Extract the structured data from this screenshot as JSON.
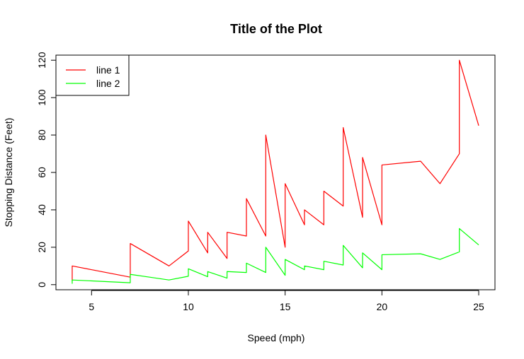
{
  "chart_data": {
    "type": "line",
    "title": "Title of the Plot",
    "xlabel": "Speed (mph)",
    "ylabel": "Stopping Distance (Feet)",
    "xlim": [
      3.16,
      25.84
    ],
    "ylim": [
      -2.72,
      122.72
    ],
    "xticks": [
      5,
      10,
      15,
      20,
      25
    ],
    "yticks": [
      0,
      20,
      40,
      60,
      80,
      100,
      120
    ],
    "grid": false,
    "legend_position": "top-left",
    "x": [
      4,
      4,
      7,
      7,
      8,
      9,
      10,
      10,
      10,
      11,
      11,
      12,
      12,
      12,
      12,
      13,
      13,
      13,
      13,
      14,
      14,
      14,
      14,
      15,
      15,
      15,
      16,
      16,
      17,
      17,
      17,
      18,
      18,
      18,
      18,
      19,
      19,
      19,
      20,
      20,
      20,
      20,
      20,
      22,
      23,
      24,
      24,
      24,
      24,
      25
    ],
    "series": [
      {
        "name": "line 1",
        "color": "#ff0000",
        "values": [
          2,
          10,
          4,
          22,
          16,
          10,
          18,
          26,
          34,
          17,
          28,
          14,
          20,
          24,
          28,
          26,
          34,
          34,
          46,
          26,
          36,
          60,
          80,
          20,
          26,
          54,
          32,
          40,
          32,
          40,
          50,
          42,
          56,
          76,
          84,
          36,
          46,
          68,
          32,
          48,
          52,
          56,
          64,
          66,
          54,
          70,
          92,
          93,
          120,
          85
        ]
      },
      {
        "name": "line 2",
        "color": "#00ff00",
        "values": [
          0.5,
          2.5,
          1,
          5.5,
          4,
          2.5,
          4.5,
          6.5,
          8.5,
          4.25,
          7,
          3.5,
          5,
          6,
          7,
          6.5,
          8.5,
          8.5,
          11.5,
          6.5,
          9,
          15,
          20,
          5,
          6.5,
          13.5,
          8,
          10,
          8,
          10,
          12.5,
          10.5,
          14,
          19,
          21,
          9,
          11.5,
          17,
          8,
          12,
          13,
          14,
          16,
          16.5,
          13.5,
          17.5,
          23,
          23.25,
          30,
          21.25
        ]
      }
    ]
  }
}
